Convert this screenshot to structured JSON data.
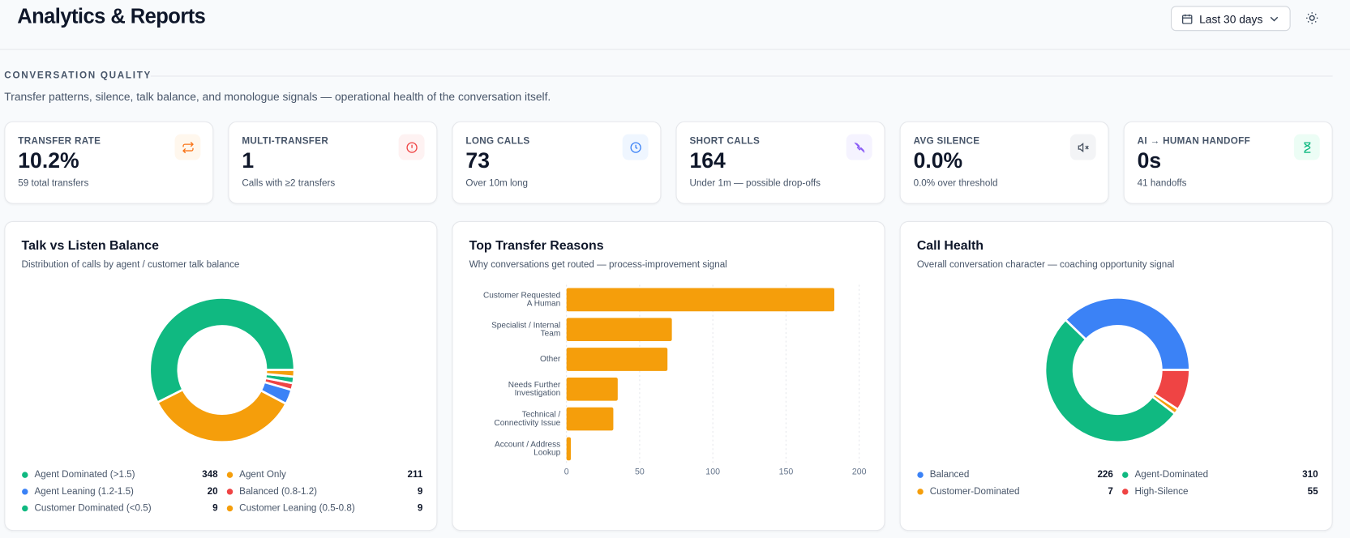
{
  "header": {
    "title": "Analytics & Reports",
    "date_range": "Last 30 days"
  },
  "section": {
    "title": "CONVERSATION QUALITY",
    "description": "Transfer patterns, silence, talk balance, and monologue signals — operational health of the conversation itself."
  },
  "kpis": [
    {
      "label": "TRANSFER RATE",
      "value": "10.2%",
      "sub": "59 total transfers"
    },
    {
      "label": "MULTI-TRANSFER",
      "value": "1",
      "sub": "Calls with ≥2 transfers"
    },
    {
      "label": "LONG CALLS",
      "value": "73",
      "sub": "Over 10m long"
    },
    {
      "label": "SHORT CALLS",
      "value": "164",
      "sub": "Under 1m — possible drop-offs"
    },
    {
      "label": "AVG SILENCE",
      "value": "0.0%",
      "sub": "0.0% over threshold"
    },
    {
      "label": "AI → HUMAN HANDOFF",
      "value": "0s",
      "sub": "41 handoffs"
    }
  ],
  "chart_data": [
    {
      "type": "donut",
      "title": "Talk vs Listen Balance",
      "subtitle": "Distribution of calls by agent / customer talk balance",
      "categories": [
        "Agent Dominated (>1.5)",
        "Agent Only",
        "Agent Leaning (1.2-1.5)",
        "Balanced (0.8-1.2)",
        "Customer Dominated (<0.5)",
        "Customer Leaning (0.5-0.8)"
      ],
      "values": [
        348,
        211,
        20,
        9,
        9,
        9
      ],
      "colors": [
        "#10b981",
        "#f59e0b",
        "#3b82f6",
        "#ef4444",
        "#10b981",
        "#f59e0b"
      ]
    },
    {
      "type": "bar",
      "orientation": "horizontal",
      "title": "Top Transfer Reasons",
      "subtitle": "Why conversations get routed — process-improvement signal",
      "categories": [
        [
          "Customer Requested",
          "A Human"
        ],
        [
          "Specialist / Internal",
          "Team"
        ],
        [
          "Other"
        ],
        [
          "Needs Further",
          "Investigation"
        ],
        [
          "Technical /",
          "Connectivity Issue"
        ],
        [
          "Account / Address",
          "Lookup"
        ]
      ],
      "values": [
        183,
        72,
        69,
        35,
        32,
        3
      ],
      "color": "#f59e0b",
      "xlim": [
        0,
        200
      ],
      "xticks": [
        0,
        50,
        100,
        150,
        200
      ],
      "grid": true
    },
    {
      "type": "donut",
      "title": "Call Health",
      "subtitle": "Overall conversation character — coaching opportunity signal",
      "categories": [
        "Balanced",
        "Agent-Dominated",
        "Customer-Dominated",
        "High-Silence"
      ],
      "values": [
        226,
        310,
        7,
        55
      ],
      "colors": [
        "#3b82f6",
        "#10b981",
        "#f59e0b",
        "#ef4444"
      ]
    }
  ]
}
